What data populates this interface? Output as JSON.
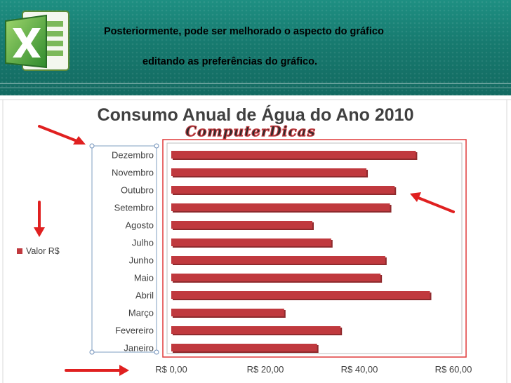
{
  "header": {
    "line1": "Posteriormente, pode ser melhorado o aspecto do gráfico",
    "line2": "editando as preferências do gráfico.",
    "logo_icon": "excel-icon",
    "background_color": "#177a6f"
  },
  "chart_data": {
    "type": "bar",
    "orientation": "horizontal",
    "title": "Consumo Anual de Água do Ano 2010",
    "watermark": "ComputerDicas",
    "categories": [
      "Dezembro",
      "Novembro",
      "Outubro",
      "Setembro",
      "Agosto",
      "Julho",
      "Junho",
      "Maio",
      "Abril",
      "Março",
      "Fevereiro",
      "Janeiro"
    ],
    "series": [
      {
        "name": "Valor R$",
        "values": [
          52,
          41.5,
          47.5,
          46.5,
          30,
          34,
          45.5,
          44.5,
          55,
          24,
          36,
          31
        ],
        "color": "#c0393e"
      }
    ],
    "x_tick_labels": [
      "R$ 0,00",
      "R$ 20,00",
      "R$ 40,00",
      "R$ 60,00"
    ],
    "x_ticks": [
      0,
      20,
      40,
      60
    ],
    "xlim": [
      0,
      65
    ],
    "legend_position": "left",
    "grid": false,
    "annotation_icons": [
      "red-arrow-icon",
      "red-arrow-icon",
      "red-arrow-icon",
      "red-arrow-icon"
    ]
  }
}
